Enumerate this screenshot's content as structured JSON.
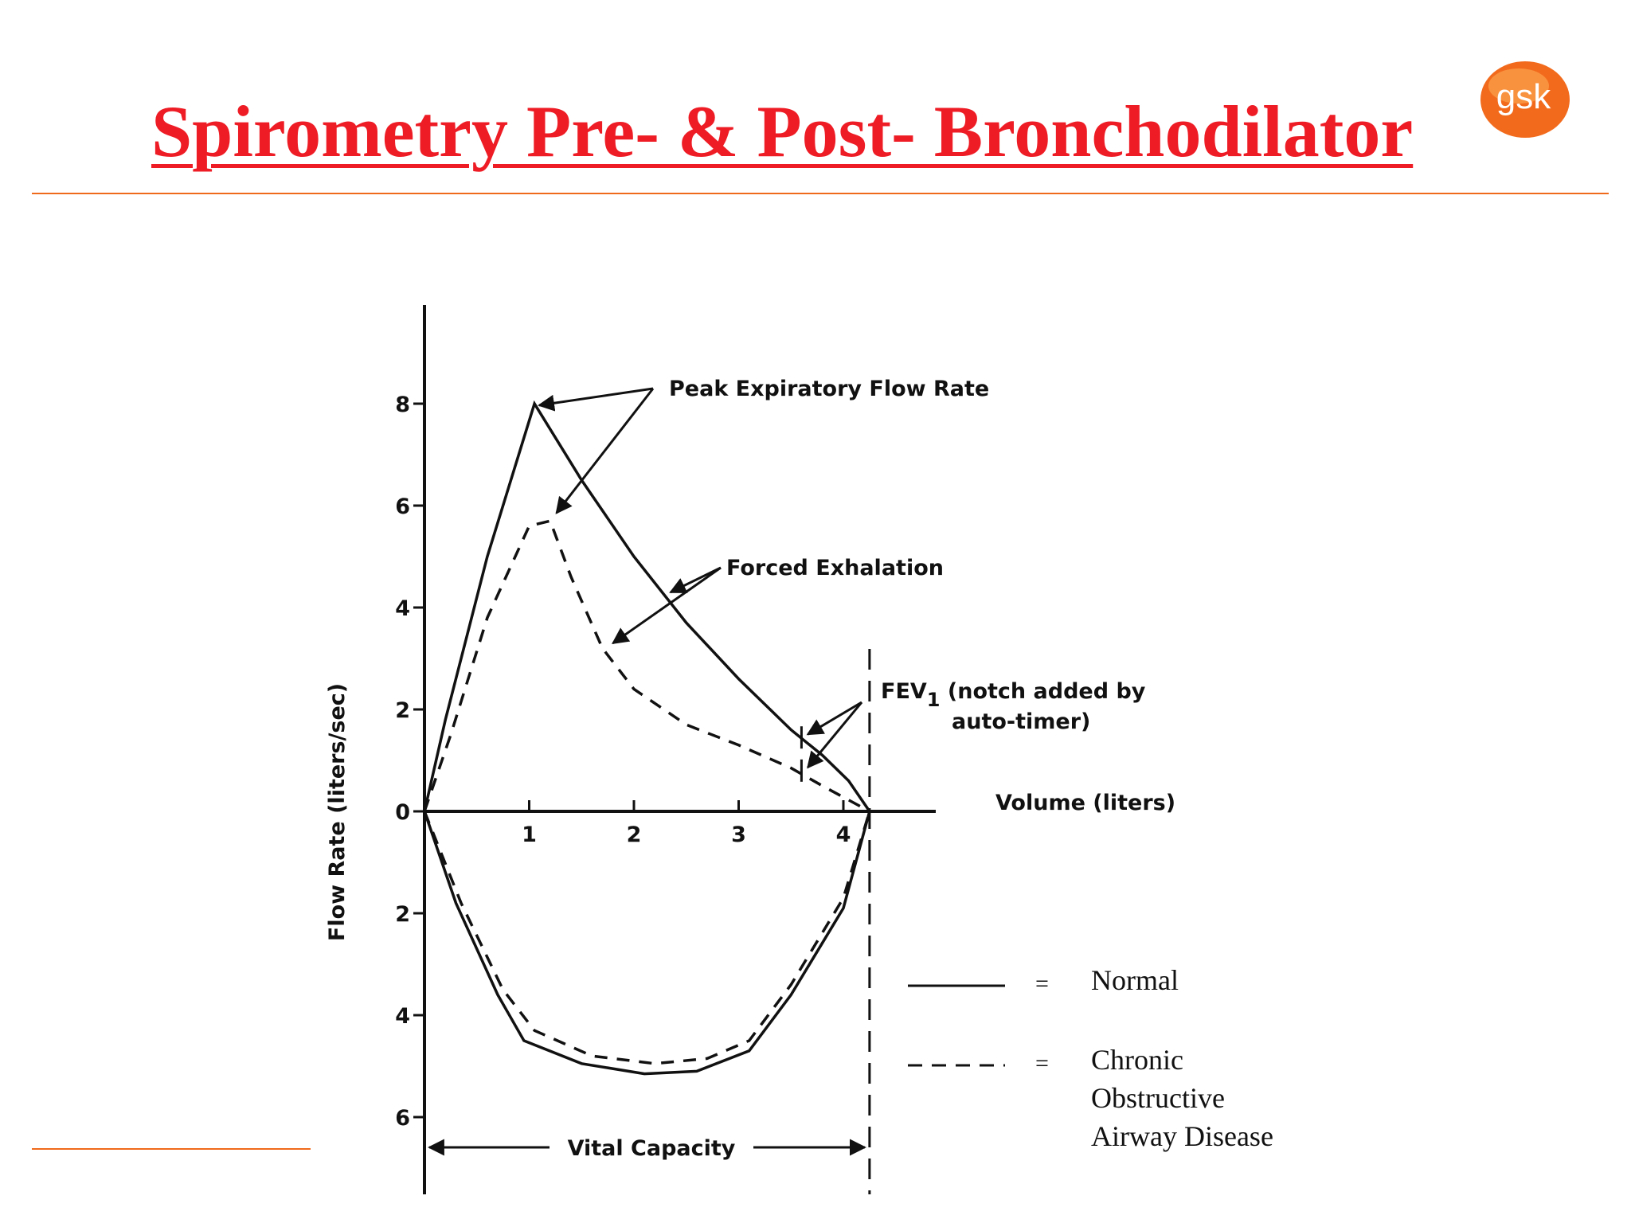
{
  "slide": {
    "title": "Spirometry Pre- & Post- Bronchodilator",
    "logo_text": "gsk",
    "title_color": "#ee1c25",
    "rule_color": "#f06a1c",
    "logo_color": "#f26b1d"
  },
  "chart_data": {
    "type": "line",
    "xlabel": "Volume (liters)",
    "ylabel": "Flow Rate (liters/sec)",
    "x_ticks": [
      1,
      2,
      3,
      4
    ],
    "y_ticks_up": [
      0,
      2,
      4,
      6,
      8
    ],
    "y_ticks_down": [
      2,
      4,
      6
    ],
    "xlim": [
      0,
      5.2
    ],
    "ylim": [
      -7.5,
      10
    ],
    "grid": false,
    "series": [
      {
        "name": "Normal",
        "line_style": "solid",
        "expiration": [
          [
            0,
            0
          ],
          [
            0.2,
            1.8
          ],
          [
            0.6,
            5
          ],
          [
            1.05,
            8.0
          ],
          [
            1.5,
            6.5
          ],
          [
            2,
            5
          ],
          [
            2.5,
            3.7
          ],
          [
            3,
            2.6
          ],
          [
            3.5,
            1.6
          ],
          [
            3.8,
            1.1
          ],
          [
            4.05,
            0.6
          ],
          [
            4.25,
            0
          ]
        ],
        "inspiration": [
          [
            0,
            0
          ],
          [
            0.3,
            -1.8
          ],
          [
            0.7,
            -3.6
          ],
          [
            0.95,
            -4.5
          ],
          [
            1.5,
            -4.95
          ],
          [
            2.1,
            -5.15
          ],
          [
            2.6,
            -5.1
          ],
          [
            3.1,
            -4.7
          ],
          [
            3.5,
            -3.6
          ],
          [
            4,
            -1.9
          ],
          [
            4.25,
            0
          ]
        ]
      },
      {
        "name": "Chronic Obstructive Airway Disease",
        "line_style": "dashed",
        "expiration": [
          [
            0,
            0
          ],
          [
            0.25,
            1.5
          ],
          [
            0.6,
            3.8
          ],
          [
            1.0,
            5.6
          ],
          [
            1.2,
            5.7
          ],
          [
            1.4,
            4.6
          ],
          [
            1.7,
            3.2
          ],
          [
            2,
            2.4
          ],
          [
            2.5,
            1.7
          ],
          [
            3,
            1.3
          ],
          [
            3.5,
            0.85
          ],
          [
            3.8,
            0.5
          ],
          [
            4.25,
            0
          ]
        ],
        "inspiration": [
          [
            0,
            0
          ],
          [
            0.35,
            -1.8
          ],
          [
            0.75,
            -3.5
          ],
          [
            1.05,
            -4.3
          ],
          [
            1.6,
            -4.8
          ],
          [
            2.2,
            -4.95
          ],
          [
            2.7,
            -4.85
          ],
          [
            3.1,
            -4.5
          ],
          [
            3.5,
            -3.4
          ],
          [
            4,
            -1.7
          ],
          [
            4.25,
            0
          ]
        ]
      }
    ],
    "fev1_notches": [
      {
        "series": "Normal",
        "x": 3.6,
        "y": 1.45
      },
      {
        "series": "Chronic Obstructive Airway Disease",
        "x": 3.6,
        "y": 0.8
      }
    ],
    "vital_capacity_x": 4.25,
    "annotations": {
      "pefr": "Peak Expiratory Flow Rate",
      "forced": "Forced Exhalation",
      "fev1_main": "FEV",
      "fev1_sub": "1",
      "fev1_rest": " (notch added by",
      "fev1_line2": "auto-timer)",
      "vital_capacity": "Vital Capacity"
    },
    "legend": {
      "placement": "bottom-right",
      "equals": "=",
      "normal_label": "Normal",
      "copd_line1": "Chronic",
      "copd_line2": "Obstructive",
      "copd_line3": "Airway Disease"
    }
  }
}
